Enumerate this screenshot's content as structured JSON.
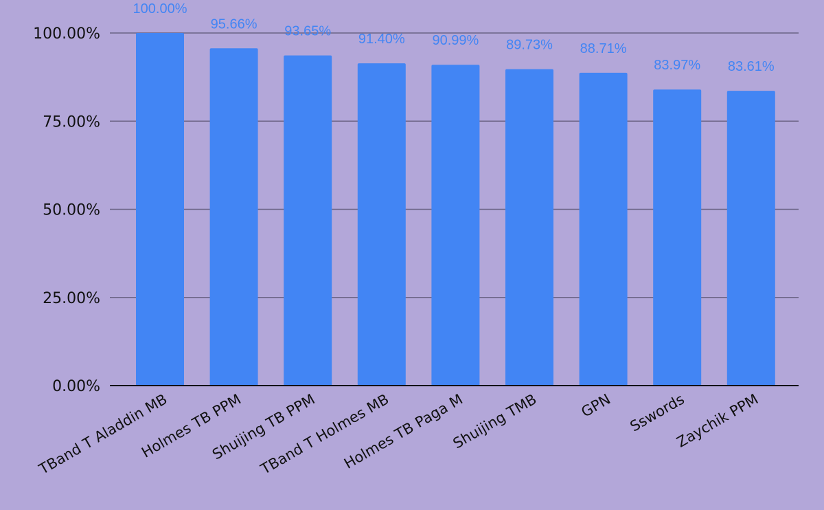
{
  "colors": {
    "background": "#b3a7d9",
    "bar": "#4285f4",
    "data_label": "#4285f4",
    "gridline": "#6b6385",
    "baseline": "#111111"
  },
  "chart_data": {
    "type": "bar",
    "title": "",
    "xlabel": "",
    "ylabel": "",
    "ylim": [
      0,
      100
    ],
    "yticks": [
      0,
      25,
      50,
      75,
      100
    ],
    "ytick_labels": [
      "0.00%",
      "25.00%",
      "50.00%",
      "75.00%",
      "100.00%"
    ],
    "grid": true,
    "legend": "none",
    "categories": [
      "TBand T Aladdin MB",
      "Holmes TB PPM",
      "Shuijing TB PPM",
      "TBand T Holmes MB",
      "Holmes TB Paga M",
      "Shuijing TMB",
      "GPN",
      "Sswords",
      "Zaychik PPM"
    ],
    "values": [
      100.0,
      95.66,
      93.65,
      91.4,
      90.99,
      89.73,
      88.71,
      83.97,
      83.61
    ],
    "value_labels": [
      "100.00%",
      "95.66%",
      "93.65%",
      "91.40%",
      "90.99%",
      "89.73%",
      "88.71%",
      "83.97%",
      "83.61%"
    ]
  }
}
